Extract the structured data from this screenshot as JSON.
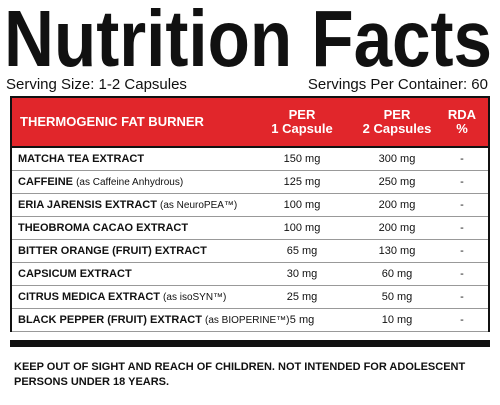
{
  "header": {
    "title": "Nutrition Facts",
    "serving_size": "Serving Size: 1-2 Capsules",
    "servings_per_container": "Servings Per Container: 60"
  },
  "table": {
    "columns": [
      "THERMOGENIC FAT BURNER",
      "PER\n1 Capsule",
      "PER\n2 Capsules",
      "RDA\n%"
    ],
    "rows": [
      {
        "name": "MATCHA TEA EXTRACT",
        "per1": "150 mg",
        "per2": "300 mg",
        "rda": "-"
      },
      {
        "name": "CAFFEINE",
        "note": "(as Caffeine Anhydrous)",
        "per1": "125 mg",
        "per2": "250 mg",
        "rda": "-"
      },
      {
        "name": "ERIA JARENSIS EXTRACT",
        "note": "(as NeuroPEA™)",
        "per1": "100 mg",
        "per2": "200 mg",
        "rda": "-"
      },
      {
        "name": "THEOBROMA CACAO  EXTRACT",
        "per1": "100 mg",
        "per2": "200 mg",
        "rda": "-"
      },
      {
        "name": "BITTER ORANGE  (FRUIT)  EXTRACT",
        "per1": "65 mg",
        "per2": "130 mg",
        "rda": "-"
      },
      {
        "name": "CAPSICUM EXTRACT",
        "per1": "30 mg",
        "per2": "60 mg",
        "rda": "-"
      },
      {
        "name": "CITRUS MEDICA EXTRACT",
        "note": "(as isoSYN™)",
        "per1": "25 mg",
        "per2": "50 mg",
        "rda": "-"
      },
      {
        "name": "BLACK PEPPER (FRUIT) EXTRACT",
        "note": "(as BIOPERINE™)",
        "per1": "5 mg",
        "per2": "10 mg",
        "rda": "-"
      }
    ]
  },
  "footer": {
    "warning": "KEEP OUT OF SIGHT AND REACH OF CHILDREN. NOT INTENDED FOR ADOLESCENT PERSONS UNDER 18 YEARS."
  }
}
